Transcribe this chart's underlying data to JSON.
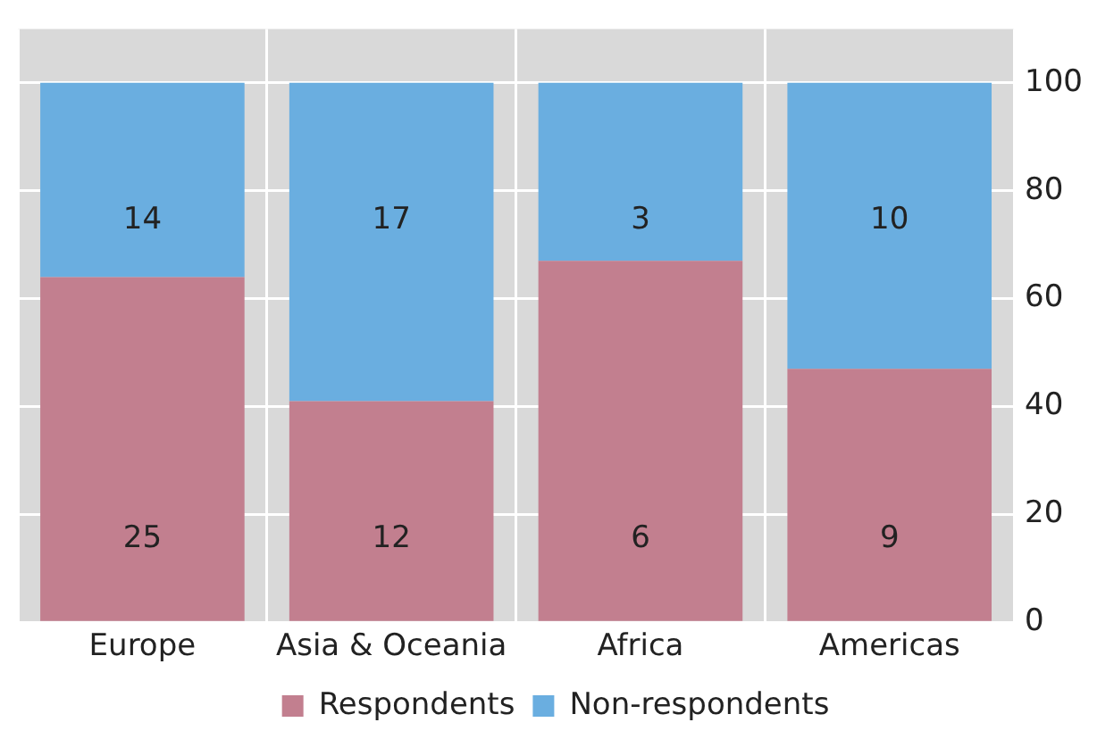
{
  "chart_data": {
    "type": "bar",
    "stacked": true,
    "categories": [
      "Europe",
      "Asia & Oceania",
      "Africa",
      "Americas"
    ],
    "series": [
      {
        "name": "Respondents",
        "color": "#c27f8f",
        "values": [
          64,
          41,
          67,
          47
        ]
      },
      {
        "name": "Non-respondents",
        "color": "#6aaee0",
        "values": [
          36,
          59,
          33,
          53
        ]
      }
    ],
    "annotations": [
      "25",
      "12",
      "6",
      "9",
      "14",
      "17",
      "3",
      "10"
    ],
    "ylim": [
      0,
      110
    ],
    "yticks": [
      0,
      20,
      40,
      60,
      80,
      100
    ],
    "grid": true,
    "legend": "bottom"
  }
}
